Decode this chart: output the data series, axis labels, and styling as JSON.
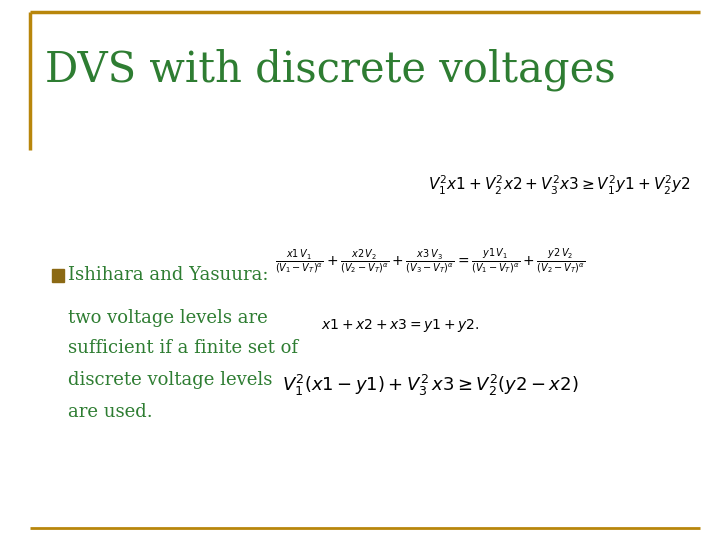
{
  "title": "DVS with discrete voltages",
  "title_color": "#2E7D32",
  "background_color": "#FFFFFF",
  "border_color": "#B8860B",
  "bullet_color": "#8B6914",
  "bullet_text_color": "#2E7D32",
  "bullet_lines": [
    "Ishihara and Yasuura:",
    "two voltage levels are",
    "sufficient if a finite set of",
    "discrete voltage levels",
    "are used."
  ],
  "fig_width": 7.2,
  "fig_height": 5.4
}
